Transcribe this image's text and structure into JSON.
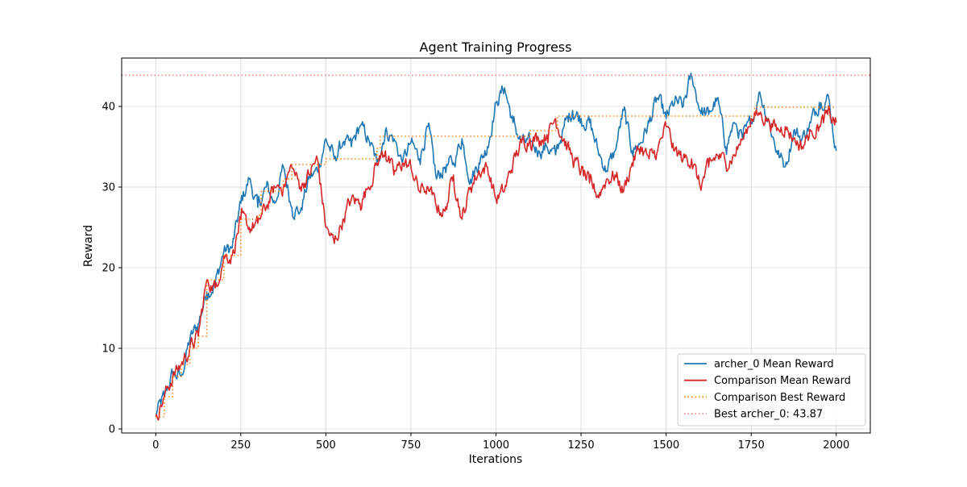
{
  "chart_data": {
    "type": "line",
    "title": "Agent Training Progress",
    "xlabel": "Iterations",
    "ylabel": "Reward",
    "xlim": [
      -100,
      2100
    ],
    "ylim": [
      -0.5,
      46.0
    ],
    "xticks": [
      0,
      250,
      500,
      750,
      1000,
      1250,
      1500,
      1750,
      2000
    ],
    "xtick_labels": [
      "0",
      "250",
      "500",
      "750",
      "1000",
      "1250",
      "1500",
      "1750",
      "2000"
    ],
    "yticks": [
      0,
      10,
      20,
      30,
      40
    ],
    "ytick_labels": [
      "0",
      "10",
      "20",
      "30",
      "40"
    ],
    "grid": true,
    "legend_position": "lower-right",
    "series": [
      {
        "name": "archer_0 Mean Reward",
        "color": "#1f77b4",
        "style": "solid",
        "x": [
          0,
          25,
          50,
          75,
          100,
          125,
          150,
          175,
          200,
          225,
          250,
          275,
          300,
          325,
          350,
          375,
          400,
          425,
          450,
          475,
          500,
          525,
          550,
          575,
          600,
          625,
          650,
          675,
          700,
          725,
          750,
          775,
          800,
          825,
          850,
          875,
          900,
          925,
          950,
          975,
          1000,
          1025,
          1050,
          1075,
          1100,
          1125,
          1150,
          1175,
          1200,
          1225,
          1250,
          1275,
          1300,
          1325,
          1350,
          1375,
          1400,
          1425,
          1450,
          1475,
          1500,
          1525,
          1550,
          1575,
          1600,
          1625,
          1650,
          1675,
          1700,
          1725,
          1750,
          1775,
          1800,
          1825,
          1850,
          1875,
          1900,
          1925,
          1950,
          1975,
          2000
        ],
        "y": [
          1.8,
          4.0,
          6.8,
          6.5,
          11.0,
          13.0,
          17.0,
          18.0,
          22.0,
          22.5,
          28.0,
          31.0,
          27.5,
          30.0,
          28.0,
          32.5,
          27.5,
          27.0,
          31.0,
          32.0,
          36.0,
          33.5,
          35.5,
          35.0,
          37.5,
          36.0,
          33.0,
          37.0,
          36.0,
          33.0,
          35.5,
          33.5,
          37.5,
          31.0,
          32.5,
          33.0,
          36.0,
          31.0,
          33.0,
          35.0,
          40.5,
          42.3,
          38.0,
          35.5,
          35.5,
          34.5,
          35.0,
          34.0,
          37.5,
          39.5,
          38.5,
          38.0,
          34.5,
          32.0,
          34.5,
          39.5,
          34.5,
          35.5,
          38.0,
          41.0,
          38.5,
          40.5,
          40.0,
          43.9,
          39.5,
          39.0,
          41.0,
          35.0,
          38.0,
          36.0,
          38.0,
          41.8,
          38.5,
          34.5,
          32.5,
          37.0,
          36.0,
          38.0,
          40.5,
          41.5,
          34.5
        ]
      },
      {
        "name": "Comparison Mean Reward",
        "color": "#d62728",
        "style": "solid",
        "x": [
          0,
          25,
          50,
          75,
          100,
          125,
          150,
          175,
          200,
          225,
          250,
          275,
          300,
          325,
          350,
          375,
          400,
          425,
          450,
          475,
          500,
          525,
          550,
          575,
          600,
          625,
          650,
          675,
          700,
          725,
          750,
          775,
          800,
          825,
          850,
          875,
          900,
          925,
          950,
          975,
          1000,
          1025,
          1050,
          1075,
          1100,
          1125,
          1150,
          1175,
          1200,
          1225,
          1250,
          1275,
          1300,
          1325,
          1350,
          1375,
          1400,
          1425,
          1450,
          1475,
          1500,
          1525,
          1550,
          1575,
          1600,
          1625,
          1650,
          1675,
          1700,
          1725,
          1750,
          1775,
          1800,
          1825,
          1850,
          1875,
          1900,
          1925,
          1950,
          1975,
          2000
        ],
        "y": [
          1.5,
          4.0,
          6.5,
          8.0,
          10.0,
          11.5,
          18.5,
          17.5,
          21.5,
          21.5,
          26.0,
          25.0,
          25.5,
          27.5,
          30.0,
          30.0,
          32.5,
          30.0,
          31.5,
          33.5,
          25.0,
          23.0,
          26.0,
          28.5,
          28.0,
          30.0,
          33.0,
          34.5,
          31.5,
          33.0,
          32.5,
          29.5,
          30.0,
          27.5,
          27.0,
          31.5,
          26.0,
          30.0,
          32.0,
          32.5,
          28.5,
          29.5,
          33.0,
          35.5,
          36.0,
          36.0,
          36.5,
          38.5,
          36.0,
          33.5,
          32.0,
          30.5,
          29.0,
          31.0,
          31.5,
          29.5,
          33.0,
          35.0,
          33.5,
          34.5,
          37.5,
          34.5,
          33.5,
          33.5,
          30.0,
          32.5,
          34.0,
          33.0,
          34.0,
          36.0,
          38.5,
          39.0,
          38.5,
          37.0,
          37.5,
          36.0,
          35.0,
          37.0,
          37.5,
          39.0,
          38.0
        ]
      },
      {
        "name": "Comparison Best Reward",
        "color": "#ff7f0e",
        "style": "dotted",
        "steps": [
          [
            0,
            1.5
          ],
          [
            25,
            4.0
          ],
          [
            50,
            6.5
          ],
          [
            75,
            8.0
          ],
          [
            100,
            10.0
          ],
          [
            125,
            11.5
          ],
          [
            150,
            18.5
          ],
          [
            200,
            21.5
          ],
          [
            250,
            26.0
          ],
          [
            300,
            26.5
          ],
          [
            310,
            29.5
          ],
          [
            375,
            31.0
          ],
          [
            400,
            32.8
          ],
          [
            500,
            33.5
          ],
          [
            650,
            34.8
          ],
          [
            660,
            36.3
          ],
          [
            1000,
            36.3
          ],
          [
            1100,
            37.0
          ],
          [
            1180,
            38.8
          ],
          [
            1475,
            38.8
          ],
          [
            1760,
            39.9
          ],
          [
            2000,
            39.9
          ]
        ]
      },
      {
        "name": "Best archer_0: 43.87",
        "color": "#f08080",
        "style": "dotted",
        "hline": 43.87
      }
    ]
  }
}
